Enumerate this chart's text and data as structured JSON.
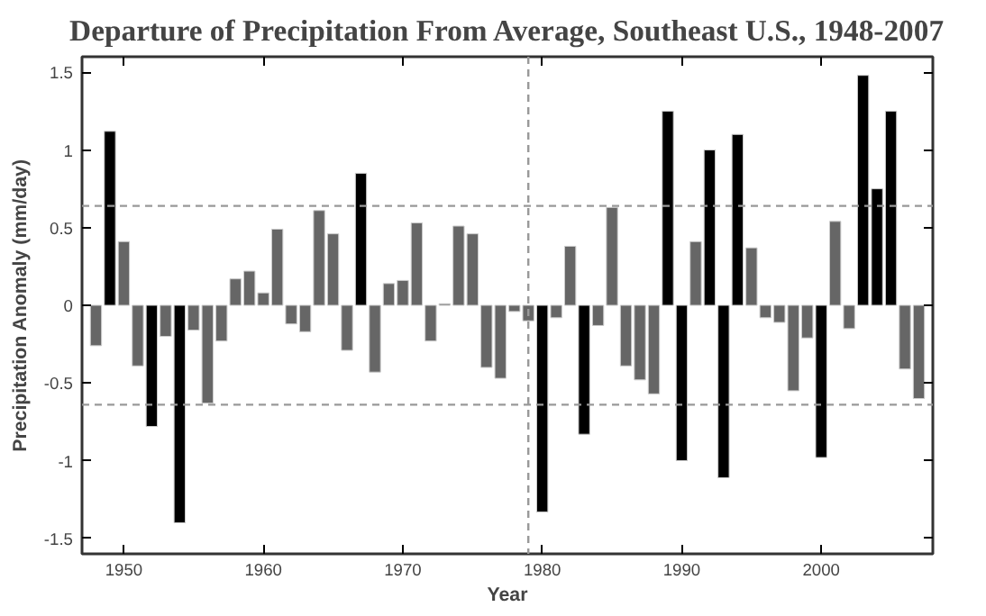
{
  "chart_data": {
    "type": "bar",
    "title": "Departure of Precipitation From Average, Southeast U.S., 1948-2007",
    "xlabel": "Year",
    "ylabel": "Precipitation Anomaly (mm/day)",
    "x": [
      1948,
      1949,
      1950,
      1951,
      1952,
      1953,
      1954,
      1955,
      1956,
      1957,
      1958,
      1959,
      1960,
      1961,
      1962,
      1963,
      1964,
      1965,
      1966,
      1967,
      1968,
      1969,
      1970,
      1971,
      1972,
      1973,
      1974,
      1975,
      1976,
      1977,
      1978,
      1979,
      1980,
      1981,
      1982,
      1983,
      1984,
      1985,
      1986,
      1987,
      1988,
      1989,
      1990,
      1991,
      1992,
      1993,
      1994,
      1995,
      1996,
      1997,
      1998,
      1999,
      2000,
      2001,
      2002,
      2003,
      2004,
      2005,
      2006,
      2007
    ],
    "values": [
      -0.26,
      1.12,
      0.41,
      -0.39,
      -0.78,
      -0.2,
      -1.4,
      -0.16,
      -0.63,
      -0.23,
      0.17,
      0.22,
      0.08,
      0.49,
      -0.12,
      -0.17,
      0.61,
      0.46,
      -0.29,
      0.85,
      -0.43,
      0.14,
      0.16,
      0.53,
      -0.23,
      0.01,
      0.51,
      0.46,
      -0.4,
      -0.47,
      -0.04,
      -0.1,
      -1.33,
      -0.08,
      0.38,
      -0.83,
      -0.13,
      0.63,
      -0.39,
      -0.48,
      -0.57,
      1.25,
      -1.0,
      0.41,
      1.0,
      -1.11,
      1.1,
      0.37,
      -0.08,
      -0.11,
      -0.55,
      -0.21,
      -0.98,
      0.54,
      -0.15,
      1.48,
      0.75,
      1.25,
      -0.41,
      -0.6
    ],
    "colors": [
      "#666666",
      "#000000",
      "#666666",
      "#666666",
      "#000000",
      "#666666",
      "#000000",
      "#666666",
      "#666666",
      "#666666",
      "#666666",
      "#666666",
      "#666666",
      "#666666",
      "#666666",
      "#666666",
      "#666666",
      "#666666",
      "#666666",
      "#000000",
      "#666666",
      "#666666",
      "#666666",
      "#666666",
      "#666666",
      "#666666",
      "#666666",
      "#666666",
      "#666666",
      "#666666",
      "#666666",
      "#666666",
      "#000000",
      "#666666",
      "#666666",
      "#000000",
      "#666666",
      "#666666",
      "#666666",
      "#666666",
      "#666666",
      "#000000",
      "#000000",
      "#666666",
      "#000000",
      "#000000",
      "#000000",
      "#666666",
      "#666666",
      "#666666",
      "#666666",
      "#666666",
      "#000000",
      "#666666",
      "#666666",
      "#000000",
      "#000000",
      "#000000",
      "#666666",
      "#666666"
    ],
    "xlim": [
      1947,
      2008
    ],
    "ylim": [
      -1.6,
      1.6
    ],
    "xticks": [
      1950,
      1960,
      1970,
      1980,
      1990,
      2000
    ],
    "yticks": [
      -1.5,
      -1,
      -0.5,
      0,
      0.5,
      1,
      1.5
    ],
    "ref_lines": [
      {
        "axis": "y",
        "value": 0.64,
        "color": "#999999",
        "line_style": "dashed"
      },
      {
        "axis": "y",
        "value": -0.64,
        "color": "#999999",
        "line_style": "dashed"
      },
      {
        "axis": "x",
        "value": 1979,
        "color": "#999999",
        "line_style": "dashed"
      }
    ],
    "grid": false
  }
}
